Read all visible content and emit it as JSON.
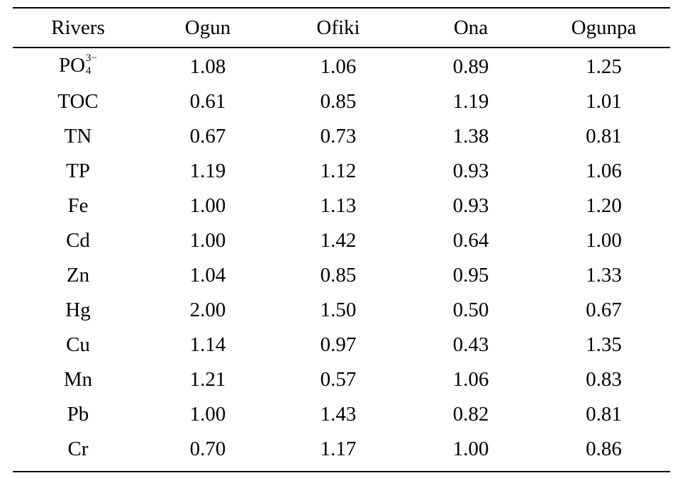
{
  "table": {
    "columns": [
      "Rivers",
      "Ogun",
      "Ofiki",
      "Ona",
      "Ogunpa"
    ],
    "first_row_label": {
      "base": "PO",
      "superscript": "3−",
      "subscript": "4"
    },
    "rows": [
      {
        "label": "PO",
        "values": [
          "1.08",
          "1.06",
          "0.89",
          "1.25"
        ]
      },
      {
        "label": "TOC",
        "values": [
          "0.61",
          "0.85",
          "1.19",
          "1.01"
        ]
      },
      {
        "label": "TN",
        "values": [
          "0.67",
          "0.73",
          "1.38",
          "0.81"
        ]
      },
      {
        "label": "TP",
        "values": [
          "1.19",
          "1.12",
          "0.93",
          "1.06"
        ]
      },
      {
        "label": "Fe",
        "values": [
          "1.00",
          "1.13",
          "0.93",
          "1.20"
        ]
      },
      {
        "label": "Cd",
        "values": [
          "1.00",
          "1.42",
          "0.64",
          "1.00"
        ]
      },
      {
        "label": "Zn",
        "values": [
          "1.04",
          "0.85",
          "0.95",
          "1.33"
        ]
      },
      {
        "label": "Hg",
        "values": [
          "2.00",
          "1.50",
          "0.50",
          "0.67"
        ]
      },
      {
        "label": "Cu",
        "values": [
          "1.14",
          "0.97",
          "0.43",
          "1.35"
        ]
      },
      {
        "label": "Mn",
        "values": [
          "1.21",
          "0.57",
          "1.06",
          "0.83"
        ]
      },
      {
        "label": "Pb",
        "values": [
          "1.00",
          "1.43",
          "0.82",
          "0.81"
        ]
      },
      {
        "label": "Cr",
        "values": [
          "0.70",
          "1.17",
          "1.00",
          "0.86"
        ]
      }
    ]
  }
}
